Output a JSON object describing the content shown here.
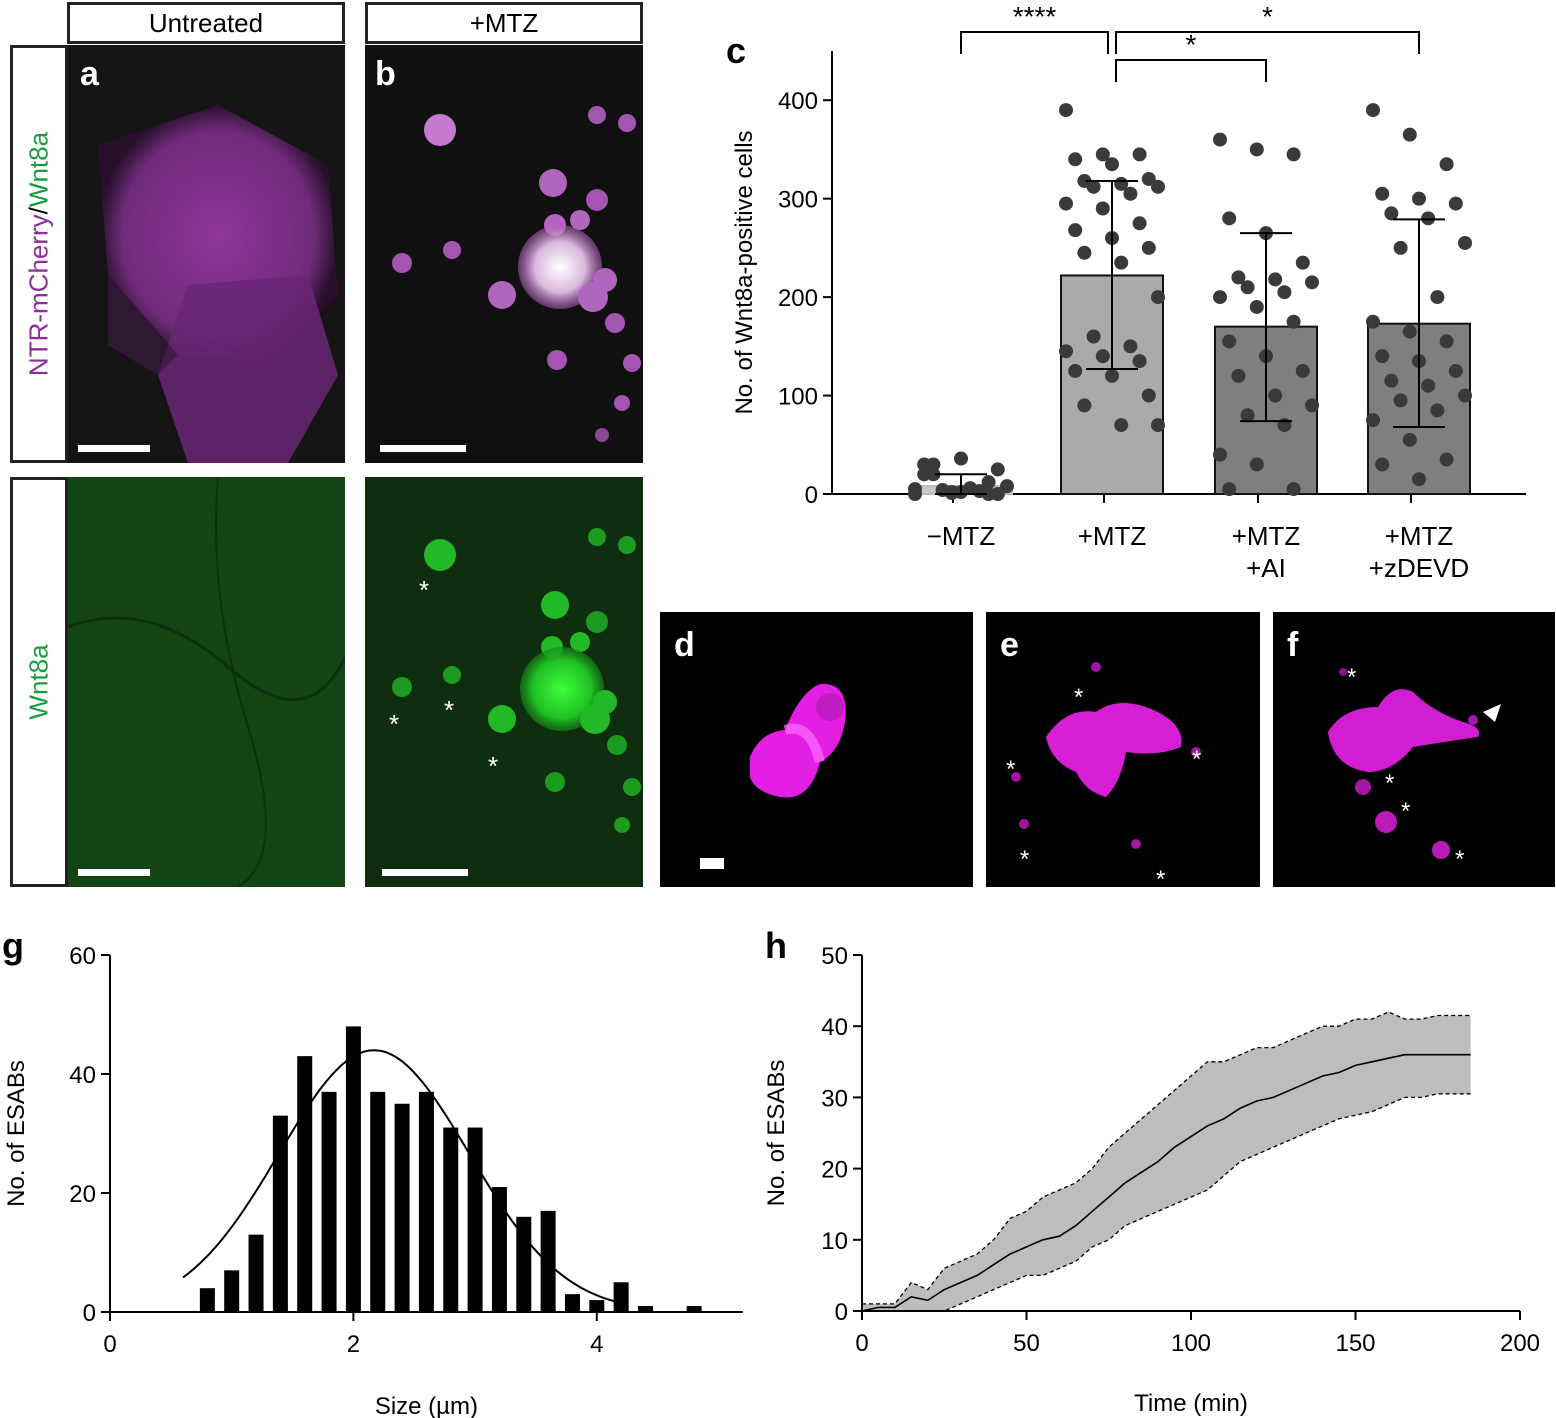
{
  "panel_labels": {
    "a": "a",
    "b": "b",
    "c": "c",
    "d": "d",
    "e": "e",
    "f": "f",
    "g": "g",
    "h": "h"
  },
  "micrograph": {
    "col_headers": [
      "Untreated",
      "+MTZ"
    ],
    "row_label_top": {
      "part1": "NTR-mCherry",
      "sep": "/",
      "part2": "Wnt8a"
    },
    "row_label_bottom": "Wnt8a",
    "asterisk": "*",
    "colors": {
      "magenta": "#b03fc0",
      "green": "#28c030",
      "bg": "#050505"
    }
  },
  "chart_data": [
    {
      "id": "c",
      "type": "bar",
      "categories": [
        "−MTZ",
        "+MTZ",
        "+MTZ\n+AI",
        "+MTZ\n+zDEVD"
      ],
      "values": [
        8,
        222,
        170,
        173
      ],
      "sd_low": [
        0,
        127,
        74,
        68
      ],
      "sd_high": [
        20,
        318,
        265,
        279
      ],
      "bar_colors": [
        "#c8c8c8",
        "#aaaaaa",
        "#7f7f7f",
        "#7f7f7f"
      ],
      "ylabel": "No. of Wnt8a-positive cells",
      "ylim": [
        0,
        450
      ],
      "yticks": [
        0,
        100,
        200,
        300,
        400
      ],
      "points": [
        [
          0,
          2,
          0,
          30,
          36,
          25,
          20,
          6,
          8,
          4,
          3,
          5,
          1,
          12,
          20,
          2,
          0,
          30
        ],
        [
          390,
          345,
          345,
          340,
          335,
          320,
          318,
          315,
          312,
          312,
          305,
          295,
          290,
          275,
          268,
          260,
          250,
          245,
          235,
          200,
          160,
          150,
          145,
          140,
          135,
          125,
          120,
          100,
          90,
          70,
          70
        ],
        [
          360,
          350,
          345,
          280,
          265,
          235,
          220,
          218,
          215,
          210,
          205,
          200,
          190,
          175,
          155,
          140,
          125,
          120,
          100,
          90,
          80,
          70,
          40,
          30,
          5,
          5
        ],
        [
          390,
          365,
          335,
          305,
          300,
          295,
          285,
          280,
          255,
          250,
          200,
          175,
          165,
          155,
          140,
          135,
          125,
          115,
          110,
          100,
          95,
          85,
          75,
          55,
          35,
          30,
          15
        ]
      ],
      "significance": [
        {
          "from": 0,
          "to": 1,
          "label": "****"
        },
        {
          "from": 1,
          "to": 3,
          "label": "*"
        },
        {
          "from": 1,
          "to": 2,
          "label": "*"
        }
      ]
    },
    {
      "id": "g",
      "type": "bar",
      "x": [
        0.8,
        1.0,
        1.2,
        1.4,
        1.6,
        1.8,
        2.0,
        2.2,
        2.4,
        2.6,
        2.8,
        3.0,
        3.2,
        3.4,
        3.6,
        3.8,
        4.0,
        4.2,
        4.4,
        4.6,
        4.8
      ],
      "values": [
        4,
        7,
        13,
        33,
        43,
        37,
        48,
        37,
        35,
        37,
        31,
        31,
        21,
        16,
        17,
        3,
        2,
        5,
        1,
        0,
        1
      ],
      "fit_curve": "gaussian",
      "fit_peak": 44,
      "fit_center": 2.17,
      "fit_sd": 0.78,
      "fit_range": [
        0.6,
        4.2
      ],
      "xlabel": "Size (µm)",
      "ylabel": "No. of ESABs",
      "xlim": [
        0,
        5.2
      ],
      "ylim": [
        0,
        60
      ],
      "xticks": [
        0,
        2,
        4
      ],
      "yticks": [
        0,
        20,
        40,
        60
      ]
    },
    {
      "id": "h",
      "type": "area",
      "mean": [
        [
          0,
          0
        ],
        [
          5,
          0.5
        ],
        [
          10,
          0.5
        ],
        [
          15,
          2
        ],
        [
          20,
          1.5
        ],
        [
          25,
          3
        ],
        [
          30,
          4
        ],
        [
          35,
          5
        ],
        [
          40,
          6.5
        ],
        [
          45,
          8
        ],
        [
          50,
          9
        ],
        [
          55,
          10
        ],
        [
          60,
          10.5
        ],
        [
          65,
          12
        ],
        [
          70,
          14
        ],
        [
          75,
          16
        ],
        [
          80,
          18
        ],
        [
          85,
          19.5
        ],
        [
          90,
          21
        ],
        [
          95,
          23
        ],
        [
          100,
          24.5
        ],
        [
          105,
          26
        ],
        [
          110,
          27
        ],
        [
          115,
          28.5
        ],
        [
          120,
          29.5
        ],
        [
          125,
          30
        ],
        [
          130,
          31
        ],
        [
          135,
          32
        ],
        [
          140,
          33
        ],
        [
          145,
          33.5
        ],
        [
          150,
          34.5
        ],
        [
          155,
          35
        ],
        [
          160,
          35.5
        ],
        [
          165,
          36
        ],
        [
          170,
          36
        ],
        [
          175,
          36
        ],
        [
          180,
          36
        ],
        [
          185,
          36
        ]
      ],
      "upper": [
        [
          0,
          1
        ],
        [
          5,
          1
        ],
        [
          10,
          1
        ],
        [
          15,
          4
        ],
        [
          20,
          3
        ],
        [
          25,
          6
        ],
        [
          30,
          7
        ],
        [
          35,
          8
        ],
        [
          40,
          10
        ],
        [
          45,
          13
        ],
        [
          50,
          14
        ],
        [
          55,
          16
        ],
        [
          60,
          17
        ],
        [
          65,
          18
        ],
        [
          70,
          20
        ],
        [
          75,
          23
        ],
        [
          80,
          25
        ],
        [
          85,
          27
        ],
        [
          90,
          29
        ],
        [
          95,
          31
        ],
        [
          100,
          33
        ],
        [
          105,
          35
        ],
        [
          110,
          35
        ],
        [
          115,
          36
        ],
        [
          120,
          37
        ],
        [
          125,
          37
        ],
        [
          130,
          38
        ],
        [
          135,
          39
        ],
        [
          140,
          40
        ],
        [
          145,
          40
        ],
        [
          150,
          41
        ],
        [
          155,
          41
        ],
        [
          160,
          42
        ],
        [
          165,
          41
        ],
        [
          170,
          41
        ],
        [
          175,
          41.5
        ],
        [
          180,
          41.5
        ],
        [
          185,
          41.5
        ]
      ],
      "lower": [
        [
          0,
          0
        ],
        [
          5,
          0
        ],
        [
          10,
          0
        ],
        [
          15,
          0
        ],
        [
          20,
          0
        ],
        [
          25,
          0
        ],
        [
          30,
          1
        ],
        [
          35,
          2
        ],
        [
          40,
          3
        ],
        [
          45,
          4
        ],
        [
          50,
          5
        ],
        [
          55,
          5
        ],
        [
          60,
          6
        ],
        [
          65,
          7
        ],
        [
          70,
          9
        ],
        [
          75,
          10
        ],
        [
          80,
          12
        ],
        [
          85,
          13
        ],
        [
          90,
          14
        ],
        [
          95,
          15
        ],
        [
          100,
          16
        ],
        [
          105,
          17
        ],
        [
          110,
          19
        ],
        [
          115,
          21
        ],
        [
          120,
          22
        ],
        [
          125,
          23
        ],
        [
          130,
          24
        ],
        [
          135,
          25
        ],
        [
          140,
          26
        ],
        [
          145,
          27
        ],
        [
          150,
          27.5
        ],
        [
          155,
          28
        ],
        [
          160,
          29
        ],
        [
          165,
          30
        ],
        [
          170,
          30
        ],
        [
          175,
          30.5
        ],
        [
          180,
          30.5
        ],
        [
          185,
          30.5
        ]
      ],
      "xlabel": "Time (min)",
      "ylabel": "No. of ESABs",
      "xlim": [
        0,
        200
      ],
      "ylim": [
        0,
        50
      ],
      "xticks": [
        0,
        50,
        100,
        150,
        200
      ],
      "yticks": [
        0,
        10,
        20,
        30,
        40,
        50
      ]
    }
  ]
}
